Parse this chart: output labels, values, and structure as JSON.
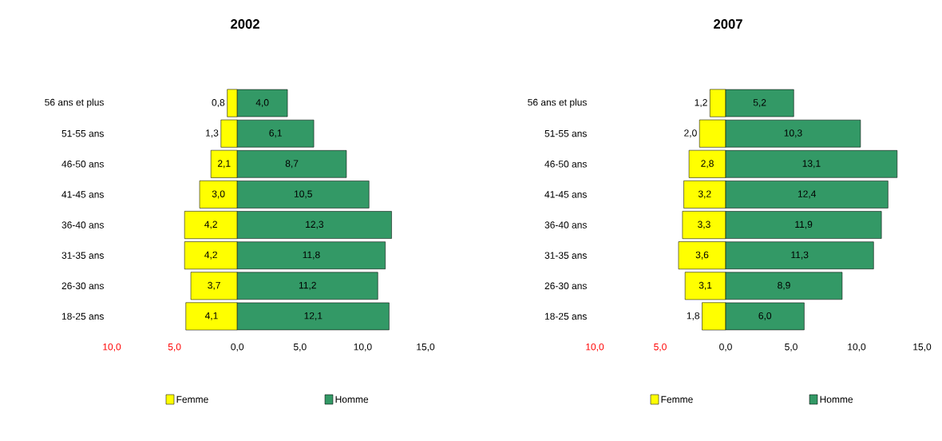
{
  "chart_data": [
    {
      "type": "bar",
      "orientation": "horizontal",
      "title": "2002",
      "categories": [
        "56 ans et plus",
        "51-55 ans",
        "46-50 ans",
        "41-45 ans",
        "36-40 ans",
        "31-35 ans",
        "26-30 ans",
        "18-25 ans"
      ],
      "series": [
        {
          "name": "Femme",
          "color": "#ffff00",
          "base": [
            -0.8,
            -1.3,
            -2.1,
            -3.0,
            -4.2,
            -4.2,
            -3.7,
            -4.1
          ],
          "values": [
            0.8,
            1.3,
            2.1,
            3.0,
            4.2,
            4.2,
            3.7,
            4.1
          ],
          "value_labels": [
            "0,8",
            "1,3",
            "2,1",
            "3,0",
            "4,2",
            "4,2",
            "3,7",
            "4,1"
          ]
        },
        {
          "name": "Homme",
          "color": "#339966",
          "values": [
            4.0,
            6.1,
            8.7,
            10.5,
            12.3,
            11.8,
            11.2,
            12.1
          ],
          "value_labels": [
            "4,0",
            "6,1",
            "8,7",
            "10,5",
            "12,3",
            "11,8",
            "11,2",
            "12,1"
          ]
        }
      ],
      "xlim": [
        -10,
        15
      ],
      "xticks": [
        {
          "value": -10,
          "label": "10,0"
        },
        {
          "value": -5,
          "label": "5,0"
        },
        {
          "value": 0,
          "label": "0,0"
        },
        {
          "value": 5,
          "label": "5,0"
        },
        {
          "value": 10,
          "label": "10,0"
        },
        {
          "value": 15,
          "label": "15,0"
        }
      ],
      "legend": "bottom"
    },
    {
      "type": "bar",
      "orientation": "horizontal",
      "title": "2007",
      "categories": [
        "56 ans et plus",
        "51-55 ans",
        "46-50 ans",
        "41-45 ans",
        "36-40 ans",
        "31-35 ans",
        "26-30 ans",
        "18-25 ans"
      ],
      "series": [
        {
          "name": "Femme",
          "color": "#ffff00",
          "base": [
            -1.2,
            -2.0,
            -2.8,
            -3.2,
            -3.3,
            -3.6,
            -3.1,
            -1.8
          ],
          "values": [
            1.2,
            2.0,
            2.8,
            3.2,
            3.3,
            3.6,
            3.1,
            1.8
          ],
          "value_labels": [
            "1,2",
            "2,0",
            "2,8",
            "3,2",
            "3,3",
            "3,6",
            "3,1",
            "1,8"
          ]
        },
        {
          "name": "Homme",
          "color": "#339966",
          "values": [
            5.2,
            10.3,
            13.1,
            12.4,
            11.9,
            11.3,
            8.9,
            6.0
          ],
          "value_labels": [
            "5,2",
            "10,3",
            "13,1",
            "12,4",
            "11,9",
            "11,3",
            "8,9",
            "6,0"
          ]
        }
      ],
      "xlim": [
        -10,
        15
      ],
      "xticks": [
        {
          "value": -10,
          "label": "10,0"
        },
        {
          "value": -5,
          "label": "5,0"
        },
        {
          "value": 0,
          "label": "0,0"
        },
        {
          "value": 5,
          "label": "5,0"
        },
        {
          "value": 10,
          "label": "10,0"
        },
        {
          "value": 15,
          "label": "15,0"
        }
      ],
      "legend": "bottom"
    }
  ]
}
